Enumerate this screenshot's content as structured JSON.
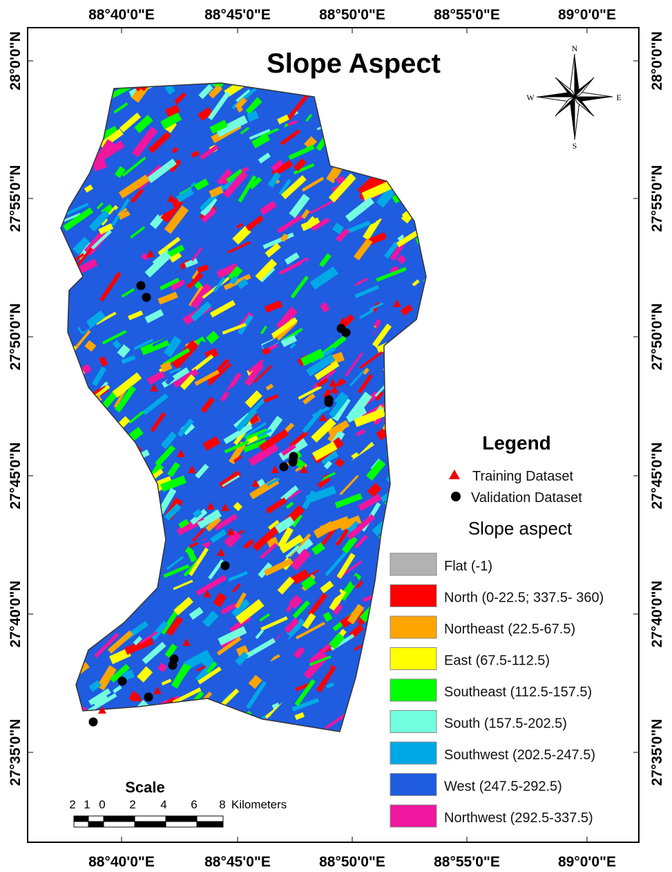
{
  "title": "Slope Aspect",
  "compass": {
    "n": "N",
    "s": "S",
    "e": "E",
    "w": "W"
  },
  "graticule": {
    "longitudes": [
      "88°40'0\"E",
      "88°45'0\"E",
      "88°50'0\"E",
      "88°55'0\"E",
      "89°0'0\"E"
    ],
    "latitudes": [
      "28°0'0\"N",
      "27°55'0\"N",
      "27°50'0\"N",
      "27°45'0\"N",
      "27°40'0\"N",
      "27°35'0\"N"
    ]
  },
  "legend": {
    "title": "Legend",
    "training": "Training Dataset",
    "validation": "Validation Dataset",
    "subtitle": "Slope aspect",
    "classes": [
      {
        "label": "Flat (-1)",
        "color": "#b2b2b2"
      },
      {
        "label": "North (0-22.5; 337.5- 360)",
        "color": "#ff0000"
      },
      {
        "label": "Northeast (22.5-67.5)",
        "color": "#ffa500"
      },
      {
        "label": "East (67.5-112.5)",
        "color": "#ffff00"
      },
      {
        "label": "Southeast (112.5-157.5)",
        "color": "#00ff00"
      },
      {
        "label": "South (157.5-202.5)",
        "color": "#73ffdf"
      },
      {
        "label": "Southwest (202.5-247.5)",
        "color": "#00a9e6"
      },
      {
        "label": "West (247.5-292.5)",
        "color": "#1f5ce0"
      },
      {
        "label": "Northwest (292.5-337.5)",
        "color": "#f0169e"
      }
    ]
  },
  "scale": {
    "title": "Scale",
    "labels": [
      "2",
      "1",
      "0",
      "2",
      "4",
      "6",
      "8",
      "Kilometers"
    ]
  }
}
